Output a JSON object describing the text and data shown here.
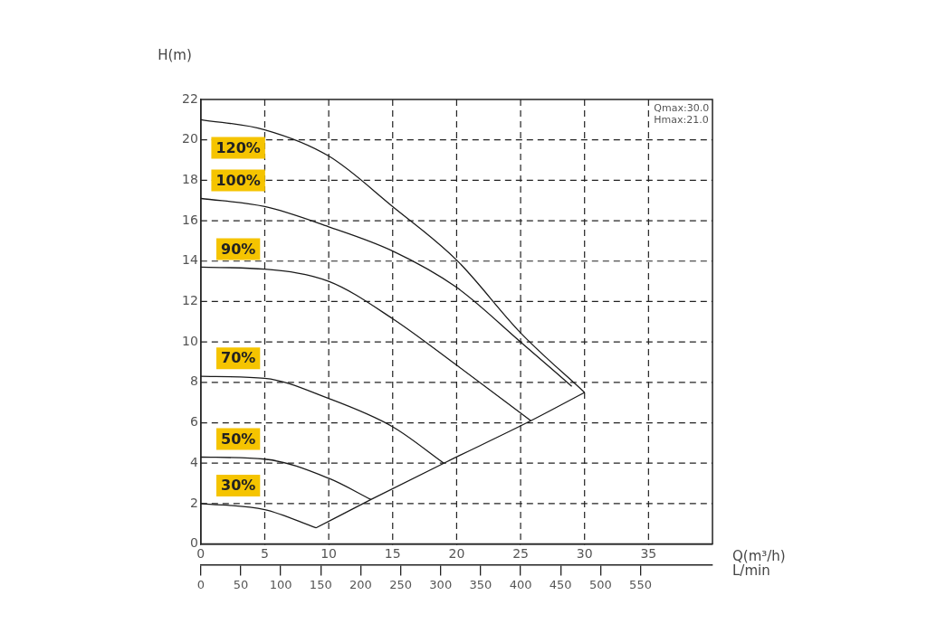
{
  "chart_data": {
    "type": "line",
    "xlabel": "Q(m³/h)",
    "ylabel": "H(m)",
    "x2label": "L/min",
    "xlim": [
      0,
      40
    ],
    "xticks": [
      0,
      5,
      10,
      15,
      20,
      25,
      30,
      35
    ],
    "x2lim": [
      0,
      640
    ],
    "x2ticks": [
      0,
      50,
      100,
      150,
      200,
      250,
      300,
      350,
      400,
      450,
      500,
      550
    ],
    "ylim": [
      0,
      22
    ],
    "yticks": [
      0,
      2,
      4,
      6,
      8,
      10,
      12,
      14,
      16,
      18,
      20,
      22
    ],
    "grid": true,
    "legend": false,
    "marker": "none",
    "line_style": "solid",
    "series": [
      {
        "name": "120%",
        "color": "#1a1a1a",
        "x": [
          0,
          5,
          10,
          15,
          20,
          25,
          30
        ],
        "values": [
          21,
          20.5,
          19.2,
          16.7,
          14.05,
          10.45,
          7.5
        ]
      },
      {
        "name": "100%",
        "color": "#1a1a1a",
        "x": [
          0,
          5,
          10,
          15,
          20,
          25,
          29
        ],
        "values": [
          17.1,
          16.7,
          15.7,
          14.5,
          12.7,
          10,
          7.8
        ]
      },
      {
        "name": "90%",
        "color": "#1a1a1a",
        "x": [
          0,
          5,
          10,
          15,
          20,
          25.8
        ],
        "values": [
          13.7,
          13.6,
          13,
          11.15,
          8.85,
          6.1
        ]
      },
      {
        "name": "70%",
        "color": "#1a1a1a",
        "x": [
          0,
          5,
          10,
          15,
          19
        ],
        "values": [
          8.3,
          8.2,
          7.2,
          5.8,
          4
        ]
      },
      {
        "name": "50%",
        "color": "#1a1a1a",
        "x": [
          0,
          5,
          10,
          13.3
        ],
        "values": [
          4.3,
          4.2,
          3.25,
          2.2
        ]
      },
      {
        "name": "30%",
        "color": "#1a1a1a",
        "x": [
          0,
          5,
          9
        ],
        "values": [
          2,
          1.7,
          0.8
        ]
      },
      {
        "color": "#1a1a1a",
        "x": [
          9,
          13.3,
          19,
          25.8,
          30
        ],
        "values": [
          0.8,
          2.2,
          4,
          6.1,
          7.5
        ]
      }
    ],
    "annotations": [
      "Qmax:30.0",
      "Hmax:21.0"
    ]
  }
}
